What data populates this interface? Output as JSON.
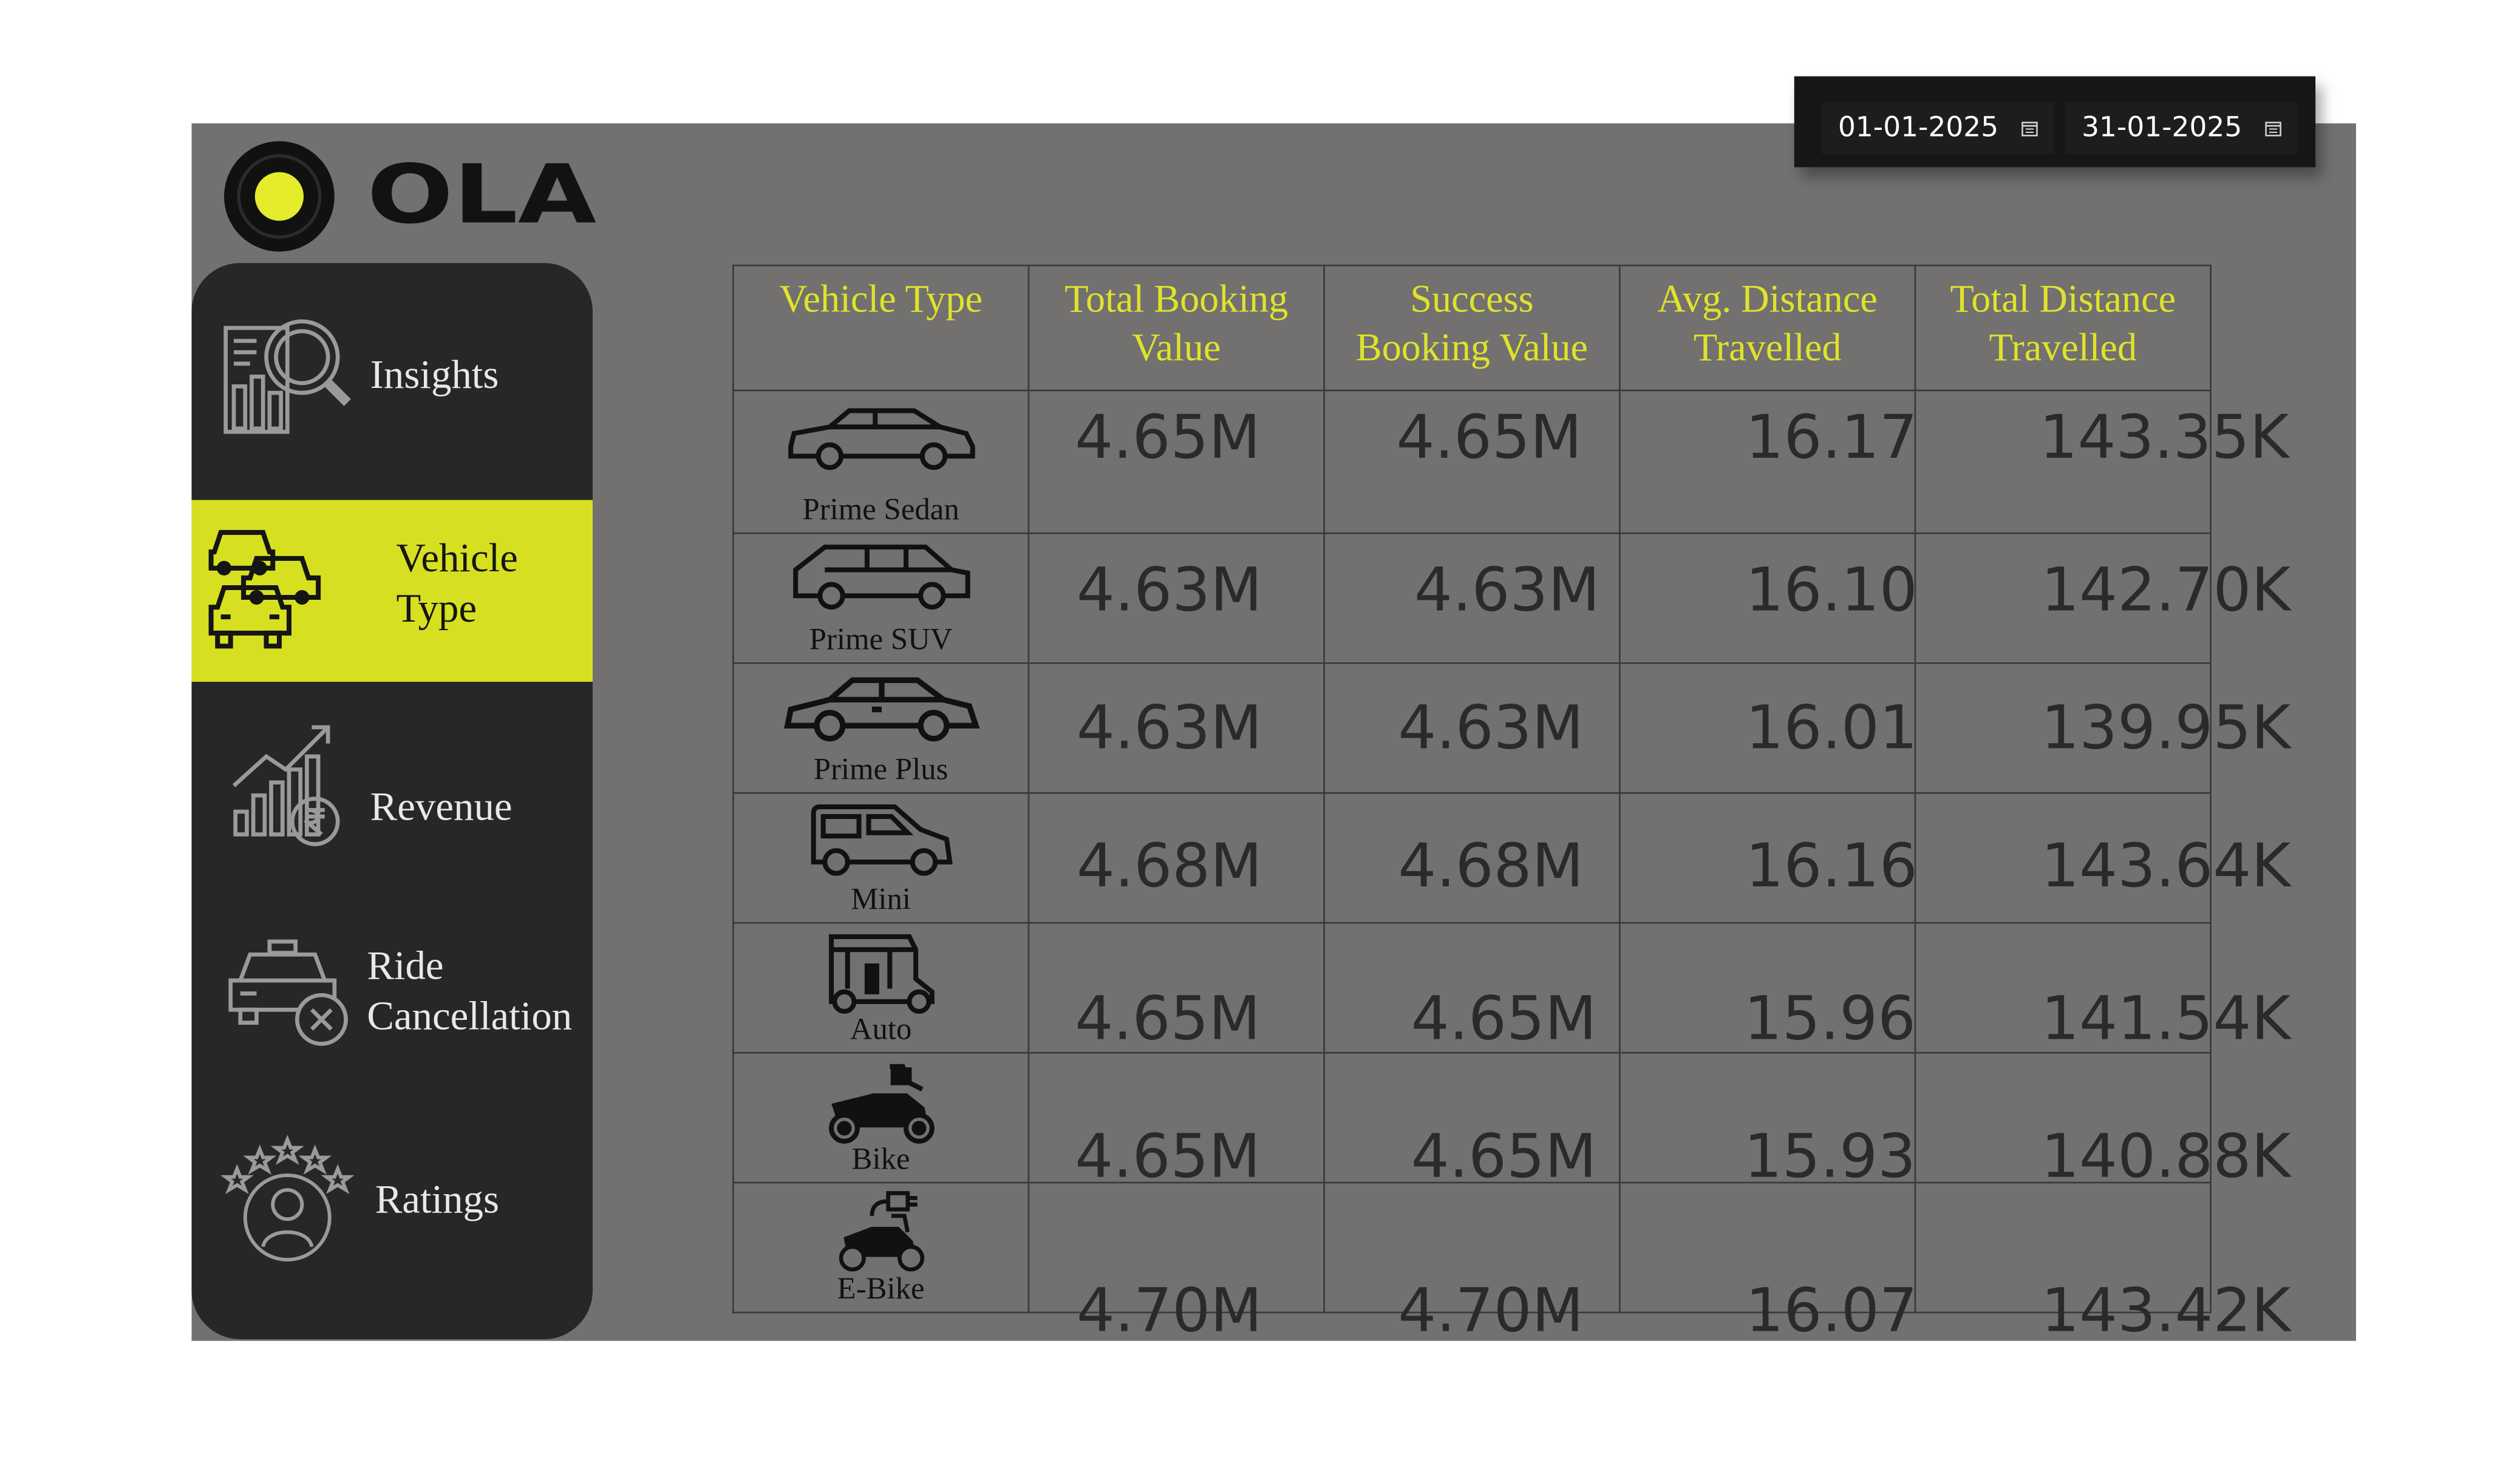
{
  "brand": {
    "name": "OLA",
    "accent": "#d6e021",
    "panel_bg": "#737070",
    "sidebar_bg": "#272727"
  },
  "date_range": {
    "from": "01-01-2025",
    "to": "31-01-2025",
    "icon": "calendar-icon"
  },
  "sidebar": {
    "items": [
      {
        "label": "Insights",
        "icon": "insights-icon",
        "active": false
      },
      {
        "label": "Vehicle Type",
        "icon": "vehicles-icon",
        "active": true
      },
      {
        "label": "Revenue",
        "icon": "revenue-icon",
        "active": false
      },
      {
        "label": "Ride Cancellation",
        "icon": "ride-cancellation-icon",
        "active": false
      },
      {
        "label": "Ratings",
        "icon": "ratings-icon",
        "active": false
      }
    ]
  },
  "table": {
    "headers": {
      "vehicle_type": "Vehicle Type",
      "total_booking": "Total Booking Value",
      "success_booking": "Success Booking Value",
      "avg_distance": "Avg. Distance Travelled",
      "total_distance": "Total Distance Travelled"
    },
    "rows": [
      {
        "vehicle": "Prime Sedan",
        "icon": "sedan-icon",
        "total_booking": "4.65M",
        "success_booking": "4.65M",
        "avg_distance": "16.17",
        "total_distance": "143.35K"
      },
      {
        "vehicle": "Prime SUV",
        "icon": "suv-icon",
        "total_booking": "4.63M",
        "success_booking": "4.63M",
        "avg_distance": "16.10",
        "total_distance": "142.70K"
      },
      {
        "vehicle": "Prime Plus",
        "icon": "prime-plus-icon",
        "total_booking": "4.63M",
        "success_booking": "4.63M",
        "avg_distance": "16.01",
        "total_distance": "139.95K"
      },
      {
        "vehicle": "Mini",
        "icon": "mini-icon",
        "total_booking": "4.68M",
        "success_booking": "4.68M",
        "avg_distance": "16.16",
        "total_distance": "143.64K"
      },
      {
        "vehicle": "Auto",
        "icon": "auto-rickshaw-icon",
        "total_booking": "4.65M",
        "success_booking": "4.65M",
        "avg_distance": "15.96",
        "total_distance": "141.54K"
      },
      {
        "vehicle": "Bike",
        "icon": "bike-icon",
        "total_booking": "4.65M",
        "success_booking": "4.65M",
        "avg_distance": "15.93",
        "total_distance": "140.88K"
      },
      {
        "vehicle": "E-Bike",
        "icon": "e-bike-icon",
        "total_booking": "4.70M",
        "success_booking": "4.70M",
        "avg_distance": "16.07",
        "total_distance": "143.42K"
      }
    ]
  }
}
